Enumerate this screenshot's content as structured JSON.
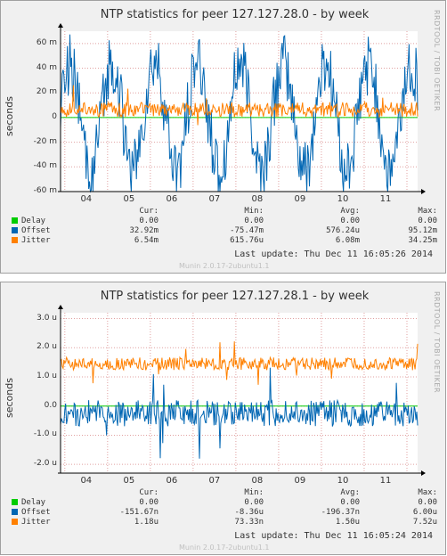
{
  "chart_data": [
    {
      "type": "line",
      "title": "NTP statistics for peer 127.127.28.0 - by week",
      "ylabel": "seconds",
      "ylim": [
        -60,
        70
      ],
      "ytick_values": [
        -60,
        -40,
        -20,
        0,
        20,
        40,
        60
      ],
      "ytick_labels": [
        "-60 m",
        "-40 m",
        "-20 m",
        "0",
        "20 m",
        "40 m",
        "60 m"
      ],
      "xtick_labels": [
        "04",
        "05",
        "06",
        "07",
        "08",
        "09",
        "10",
        "11"
      ],
      "grid": true,
      "series": [
        {
          "name": "Delay",
          "color": "#00cc00",
          "pattern": "flat",
          "base": 0,
          "amp": 0
        },
        {
          "name": "Offset",
          "color": "#0066b3",
          "pattern": "daily",
          "base": 0,
          "amp": 57
        },
        {
          "name": "Jitter",
          "color": "#ff8000",
          "pattern": "noise",
          "base": 6.5,
          "amp": 6
        }
      ],
      "legend": {
        "headers": [
          "Cur:",
          "Min:",
          "Avg:",
          "Max:"
        ],
        "rows": [
          {
            "name": "Delay",
            "color": "#00cc00",
            "cur": "0.00",
            "min": "0.00",
            "avg": "0.00",
            "max": "0.00"
          },
          {
            "name": "Offset",
            "color": "#0066b3",
            "cur": "32.92m",
            "min": "-75.47m",
            "avg": "576.24u",
            "max": "95.12m"
          },
          {
            "name": "Jitter",
            "color": "#ff8000",
            "cur": "6.54m",
            "min": "615.76u",
            "avg": "6.08m",
            "max": "34.25m"
          }
        ]
      },
      "last_update": "Last update:  Thu Dec 11 16:05:26 2014",
      "side_text": "RRDTOOL / TOBI OETIKER",
      "footer": "Munin 2.0.17-2ubuntu1.1"
    },
    {
      "type": "line",
      "title": "NTP statistics for peer 127.127.28.1 - by week",
      "ylabel": "seconds",
      "ylim": [
        -2.3,
        3.2
      ],
      "ytick_values": [
        -2,
        -1,
        0,
        1,
        2,
        3
      ],
      "ytick_labels": [
        "-2.0 u",
        "-1.0 u",
        "0.0",
        "1.0 u",
        "2.0 u",
        "3.0 u"
      ],
      "xtick_labels": [
        "04",
        "05",
        "06",
        "07",
        "08",
        "09",
        "10",
        "11"
      ],
      "grid": true,
      "series": [
        {
          "name": "Delay",
          "color": "#00cc00",
          "pattern": "flat",
          "base": 0,
          "amp": 0
        },
        {
          "name": "Offset",
          "color": "#0066b3",
          "pattern": "noise",
          "base": -0.25,
          "amp": 0.45
        },
        {
          "name": "Jitter",
          "color": "#ff8000",
          "pattern": "noise",
          "base": 1.45,
          "amp": 0.22
        }
      ],
      "legend": {
        "headers": [
          "Cur:",
          "Min:",
          "Avg:",
          "Max:"
        ],
        "rows": [
          {
            "name": "Delay",
            "color": "#00cc00",
            "cur": "0.00",
            "min": "0.00",
            "avg": "0.00",
            "max": "0.00"
          },
          {
            "name": "Offset",
            "color": "#0066b3",
            "cur": "-151.67n",
            "min": "-8.36u",
            "avg": "-196.37n",
            "max": "6.00u"
          },
          {
            "name": "Jitter",
            "color": "#ff8000",
            "cur": "1.18u",
            "min": "73.33n",
            "avg": "1.50u",
            "max": "7.52u"
          }
        ]
      },
      "last_update": "Last update:  Thu Dec 11 16:05:24 2014",
      "side_text": "RRDTOOL / TOBI OETIKER",
      "footer": "Munin 2.0.17-2ubuntu1.1"
    }
  ]
}
